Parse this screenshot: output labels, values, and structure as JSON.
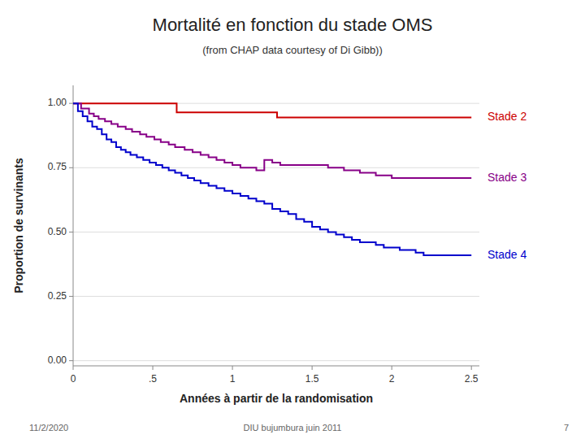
{
  "chart_data": {
    "type": "step",
    "title": "Mortalité en fonction du stade OMS",
    "subtitle": "(from CHAP data courtesy of Di Gibb))",
    "x_label": "Années à partir de la randomisation",
    "y_label": "Proportion de survinants",
    "annotations": [
      "11/2/2020",
      "DIU bujumbura juin 2011",
      "7"
    ],
    "xlim": [
      0,
      2.55
    ],
    "ylim": [
      -0.02,
      1.07
    ],
    "xticks": [
      0,
      {
        "value": 0.5,
        "label": ".5"
      },
      1,
      1.5,
      2,
      2.5
    ],
    "yticks": [
      {
        "value": 0.0,
        "label": "0.00"
      },
      {
        "value": 0.25,
        "label": "0.25"
      },
      {
        "value": 0.5,
        "label": "0.50"
      },
      {
        "value": 0.75,
        "label": "0.75"
      },
      {
        "value": 1.0,
        "label": "1.00"
      }
    ],
    "grid": true,
    "series": [
      {
        "name": "Stade 2",
        "color": "#cc0000",
        "x": [
          0,
          0.05,
          0.1,
          0.15,
          0.2,
          0.25,
          0.3,
          0.35,
          0.4,
          0.45,
          0.5,
          0.55,
          0.6,
          0.65,
          0.65,
          1.28,
          1.28,
          2.5
        ],
        "values": [
          1.0,
          1.0,
          1.0,
          1.0,
          1.0,
          1.0,
          1.0,
          1.0,
          1.0,
          1.0,
          1.0,
          1.0,
          1.0,
          1.0,
          0.965,
          0.965,
          0.945,
          0.945
        ]
      },
      {
        "name": "Stade 3",
        "color": "#880088",
        "x": [
          0,
          0.05,
          0.1,
          0.13,
          0.16,
          0.2,
          0.24,
          0.28,
          0.33,
          0.37,
          0.42,
          0.46,
          0.51,
          0.55,
          0.6,
          0.64,
          0.7,
          0.75,
          0.8,
          0.85,
          0.9,
          0.95,
          1.0,
          1.05,
          1.1,
          1.15,
          1.2,
          1.25,
          1.3,
          1.4,
          1.5,
          1.6,
          1.7,
          1.8,
          1.9,
          2.0,
          2.05,
          2.1,
          2.5
        ],
        "values": [
          1.0,
          0.98,
          0.96,
          0.95,
          0.94,
          0.93,
          0.92,
          0.91,
          0.9,
          0.89,
          0.88,
          0.87,
          0.86,
          0.85,
          0.84,
          0.83,
          0.82,
          0.81,
          0.8,
          0.79,
          0.78,
          0.77,
          0.76,
          0.75,
          0.75,
          0.74,
          0.78,
          0.77,
          0.76,
          0.76,
          0.76,
          0.75,
          0.74,
          0.73,
          0.72,
          0.71,
          0.71,
          0.71,
          0.71
        ]
      },
      {
        "name": "Stade 4",
        "color": "#0000cc",
        "x": [
          0,
          0.03,
          0.06,
          0.09,
          0.12,
          0.15,
          0.18,
          0.21,
          0.24,
          0.27,
          0.3,
          0.33,
          0.36,
          0.4,
          0.44,
          0.48,
          0.52,
          0.56,
          0.6,
          0.64,
          0.68,
          0.72,
          0.76,
          0.8,
          0.85,
          0.9,
          0.95,
          1.0,
          1.05,
          1.1,
          1.15,
          1.2,
          1.25,
          1.3,
          1.35,
          1.4,
          1.45,
          1.5,
          1.55,
          1.6,
          1.65,
          1.7,
          1.75,
          1.8,
          1.85,
          1.9,
          1.95,
          2.0,
          2.05,
          2.1,
          2.15,
          2.2,
          2.5
        ],
        "values": [
          1.0,
          0.97,
          0.95,
          0.93,
          0.91,
          0.9,
          0.88,
          0.86,
          0.85,
          0.83,
          0.82,
          0.81,
          0.8,
          0.79,
          0.78,
          0.77,
          0.76,
          0.75,
          0.74,
          0.73,
          0.72,
          0.71,
          0.7,
          0.69,
          0.68,
          0.67,
          0.66,
          0.65,
          0.64,
          0.63,
          0.62,
          0.61,
          0.59,
          0.58,
          0.57,
          0.55,
          0.54,
          0.52,
          0.51,
          0.5,
          0.49,
          0.48,
          0.47,
          0.46,
          0.46,
          0.45,
          0.44,
          0.44,
          0.43,
          0.43,
          0.42,
          0.41,
          0.41
        ]
      }
    ]
  }
}
